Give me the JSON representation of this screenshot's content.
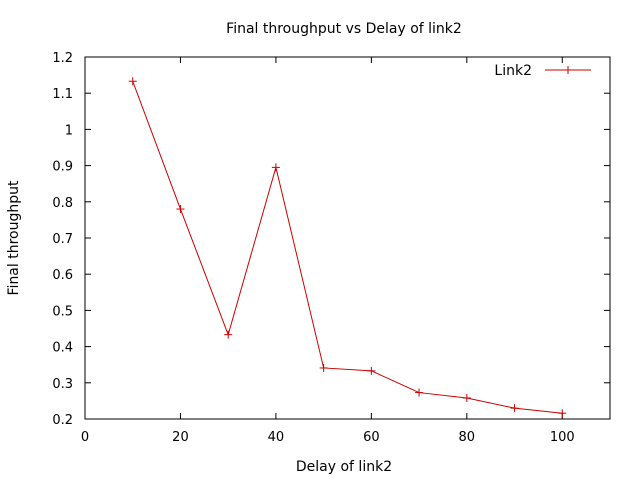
{
  "chart_data": {
    "type": "line",
    "title": "Final throughput vs Delay of link2",
    "xlabel": "Delay of link2",
    "ylabel": "Final throughput",
    "xlim": [
      0,
      110
    ],
    "ylim": [
      0.2,
      1.2
    ],
    "xticks": [
      0,
      20,
      40,
      60,
      80,
      100
    ],
    "yticks": [
      0.2,
      0.3,
      0.4,
      0.5,
      0.6,
      0.7,
      0.8,
      0.9,
      1,
      1.1,
      1.2
    ],
    "grid": false,
    "legend_position": "top-right",
    "series": [
      {
        "name": "Link2",
        "color": "#cc0000",
        "marker": "plus",
        "x": [
          10,
          20,
          30,
          40,
          50,
          60,
          70,
          80,
          90,
          100
        ],
        "y": [
          1.133,
          0.78,
          0.433,
          0.895,
          0.341,
          0.333,
          0.273,
          0.258,
          0.23,
          0.216
        ]
      }
    ]
  }
}
